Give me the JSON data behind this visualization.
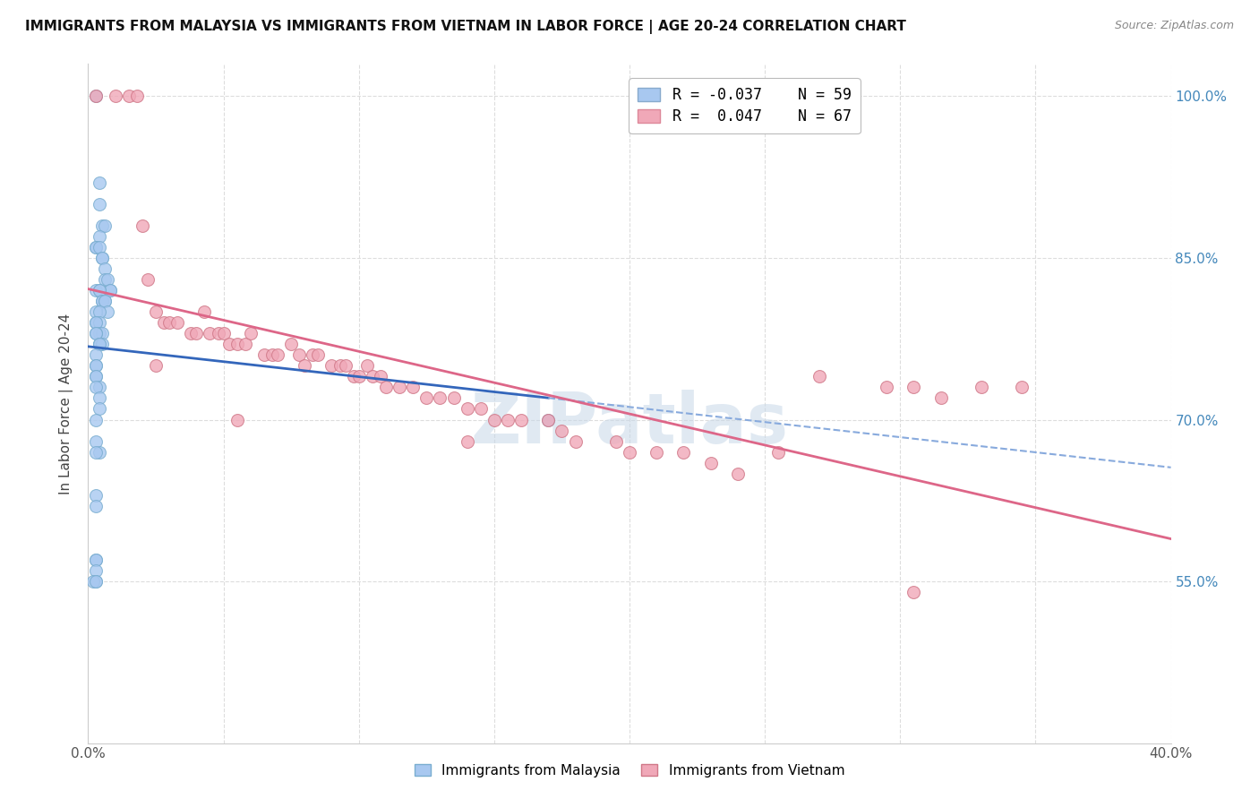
{
  "title": "IMMIGRANTS FROM MALAYSIA VS IMMIGRANTS FROM VIETNAM IN LABOR FORCE | AGE 20-24 CORRELATION CHART",
  "source": "Source: ZipAtlas.com",
  "ylabel": "In Labor Force | Age 20-24",
  "xlim": [
    0.0,
    0.4
  ],
  "ylim": [
    0.4,
    1.03
  ],
  "ytick_positions": [
    0.55,
    0.7,
    0.85,
    1.0
  ],
  "ytick_labels": [
    "55.0%",
    "70.0%",
    "85.0%",
    "100.0%"
  ],
  "xtick_positions": [
    0.0,
    0.05,
    0.1,
    0.15,
    0.2,
    0.25,
    0.3,
    0.35,
    0.4
  ],
  "xtick_labels": [
    "0.0%",
    "",
    "",
    "",
    "",
    "",
    "",
    "",
    "40.0%"
  ],
  "malaysia_color": "#a8c8f0",
  "malaysia_edge_color": "#7aaed0",
  "vietnam_color": "#f0a8b8",
  "vietnam_edge_color": "#d07888",
  "malaysia_line_color": "#3366bb",
  "malaysia_dashed_color": "#88aadd",
  "vietnam_line_color": "#dd6688",
  "legend_R_malaysia": "-0.037",
  "legend_N_malaysia": "59",
  "legend_R_vietnam": "0.047",
  "legend_N_vietnam": "67",
  "malaysia_scatter_x": [
    0.003,
    0.004,
    0.004,
    0.005,
    0.006,
    0.004,
    0.003,
    0.003,
    0.004,
    0.005,
    0.005,
    0.006,
    0.006,
    0.007,
    0.008,
    0.008,
    0.003,
    0.004,
    0.004,
    0.005,
    0.005,
    0.006,
    0.006,
    0.007,
    0.003,
    0.004,
    0.003,
    0.004,
    0.003,
    0.004,
    0.005,
    0.003,
    0.003,
    0.004,
    0.004,
    0.005,
    0.004,
    0.003,
    0.003,
    0.003,
    0.003,
    0.003,
    0.004,
    0.003,
    0.004,
    0.004,
    0.003,
    0.003,
    0.004,
    0.003,
    0.003,
    0.003,
    0.003,
    0.003,
    0.003,
    0.003,
    0.002,
    0.003,
    0.17
  ],
  "malaysia_scatter_y": [
    1.0,
    0.92,
    0.9,
    0.88,
    0.88,
    0.87,
    0.86,
    0.86,
    0.86,
    0.85,
    0.85,
    0.84,
    0.83,
    0.83,
    0.82,
    0.82,
    0.82,
    0.82,
    0.82,
    0.81,
    0.81,
    0.81,
    0.81,
    0.8,
    0.8,
    0.8,
    0.79,
    0.79,
    0.79,
    0.78,
    0.78,
    0.78,
    0.78,
    0.77,
    0.77,
    0.77,
    0.77,
    0.76,
    0.75,
    0.75,
    0.74,
    0.74,
    0.73,
    0.73,
    0.72,
    0.71,
    0.7,
    0.68,
    0.67,
    0.67,
    0.63,
    0.62,
    0.57,
    0.57,
    0.56,
    0.55,
    0.55,
    0.55,
    0.7
  ],
  "vietnam_scatter_x": [
    0.003,
    0.01,
    0.015,
    0.018,
    0.02,
    0.022,
    0.025,
    0.028,
    0.03,
    0.033,
    0.038,
    0.04,
    0.043,
    0.045,
    0.048,
    0.05,
    0.052,
    0.055,
    0.058,
    0.06,
    0.065,
    0.068,
    0.07,
    0.075,
    0.078,
    0.08,
    0.083,
    0.085,
    0.09,
    0.093,
    0.095,
    0.098,
    0.1,
    0.103,
    0.105,
    0.108,
    0.11,
    0.115,
    0.12,
    0.125,
    0.13,
    0.135,
    0.14,
    0.145,
    0.15,
    0.155,
    0.16,
    0.17,
    0.175,
    0.18,
    0.195,
    0.2,
    0.21,
    0.22,
    0.23,
    0.24,
    0.255,
    0.27,
    0.295,
    0.305,
    0.315,
    0.33,
    0.345,
    0.025,
    0.055,
    0.14,
    0.305
  ],
  "vietnam_scatter_y": [
    1.0,
    1.0,
    1.0,
    1.0,
    0.88,
    0.83,
    0.8,
    0.79,
    0.79,
    0.79,
    0.78,
    0.78,
    0.8,
    0.78,
    0.78,
    0.78,
    0.77,
    0.77,
    0.77,
    0.78,
    0.76,
    0.76,
    0.76,
    0.77,
    0.76,
    0.75,
    0.76,
    0.76,
    0.75,
    0.75,
    0.75,
    0.74,
    0.74,
    0.75,
    0.74,
    0.74,
    0.73,
    0.73,
    0.73,
    0.72,
    0.72,
    0.72,
    0.71,
    0.71,
    0.7,
    0.7,
    0.7,
    0.7,
    0.69,
    0.68,
    0.68,
    0.67,
    0.67,
    0.67,
    0.66,
    0.65,
    0.67,
    0.74,
    0.73,
    0.73,
    0.72,
    0.73,
    0.73,
    0.75,
    0.7,
    0.68,
    0.54
  ],
  "background_color": "#ffffff",
  "grid_color": "#dddddd",
  "watermark": "ZIPatlas",
  "watermark_color": "#c8d8e8",
  "right_yaxis_color": "#4488bb",
  "bottom_label_color": "#333333"
}
